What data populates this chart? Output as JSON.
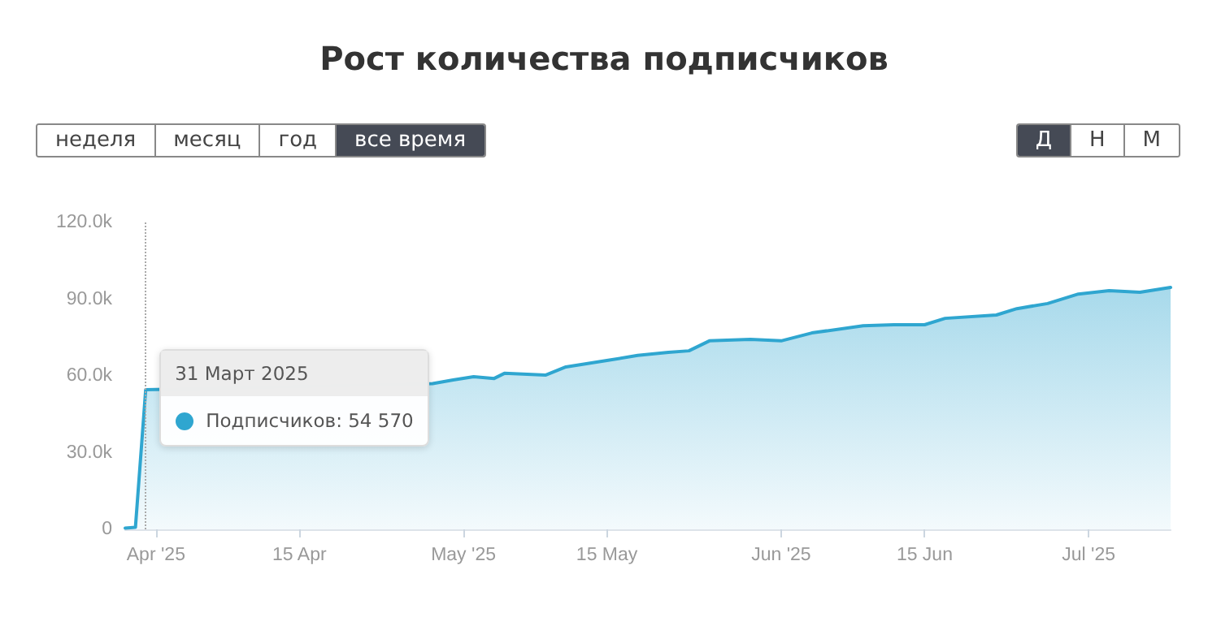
{
  "chart_data": {
    "type": "area",
    "title": "Рост количества подписчиков",
    "x": [
      "2025-03-29",
      "2025-03-30",
      "2025-03-31",
      "2025-04-02",
      "2025-04-10",
      "2025-04-20",
      "2025-04-28",
      "2025-04-30",
      "2025-05-02",
      "2025-05-04",
      "2025-05-05",
      "2025-05-09",
      "2025-05-11",
      "2025-05-15",
      "2025-05-18",
      "2025-05-21",
      "2025-05-23",
      "2025-05-25",
      "2025-05-29",
      "2025-06-01",
      "2025-06-04",
      "2025-06-09",
      "2025-06-12",
      "2025-06-15",
      "2025-06-17",
      "2025-06-22",
      "2025-06-24",
      "2025-06-27",
      "2025-06-30",
      "2025-07-03",
      "2025-07-06",
      "2025-07-09"
    ],
    "series": [
      {
        "color": "#2fa6d0",
        "values": [
          500,
          800,
          54570,
          null,
          null,
          null,
          57000,
          58400,
          59700,
          59000,
          61000,
          60300,
          63500,
          66000,
          68000,
          69200,
          69800,
          73700,
          74300,
          73700,
          76800,
          79600,
          80000,
          80000,
          82500,
          83800,
          86300,
          88300,
          92000,
          93300,
          92700,
          94600
        ]
      }
    ],
    "xlim": [
      "2025-03-29",
      "2025-07-09"
    ],
    "xticks": [
      {
        "value": "2025-04-01",
        "label": "Apr '25"
      },
      {
        "value": "2025-04-15",
        "label": "15 Apr"
      },
      {
        "value": "2025-05-01",
        "label": "May '25"
      },
      {
        "value": "2025-05-15",
        "label": "15 May"
      },
      {
        "value": "2025-06-01",
        "label": "Jun '25"
      },
      {
        "value": "2025-06-15",
        "label": "15 Jun"
      },
      {
        "value": "2025-07-01",
        "label": "Jul '25"
      }
    ],
    "ylim": [
      0,
      120000
    ],
    "yticks": [
      0,
      {
        "value": 30000,
        "label": "30.0k"
      },
      {
        "value": 60000,
        "label": "60.0k"
      },
      {
        "value": 90000,
        "label": "90.0k"
      },
      {
        "value": 120000,
        "label": "120.0k"
      }
    ],
    "ref_lines": [
      {
        "axis": "x",
        "value": "2025-03-31",
        "label": null,
        "line_style": "dotted",
        "color": "#aaaaaa"
      }
    ],
    "annotations": [
      "неделя",
      "месяц",
      "год",
      "все время",
      "Д",
      "Н",
      "М",
      {
        "text": "31 Март 2025",
        "x": "2025-03-31",
        "y": 54570
      },
      "Подписчиков:  54 570"
    ],
    "grid": false,
    "marker": "none",
    "line_style": "solid"
  }
}
